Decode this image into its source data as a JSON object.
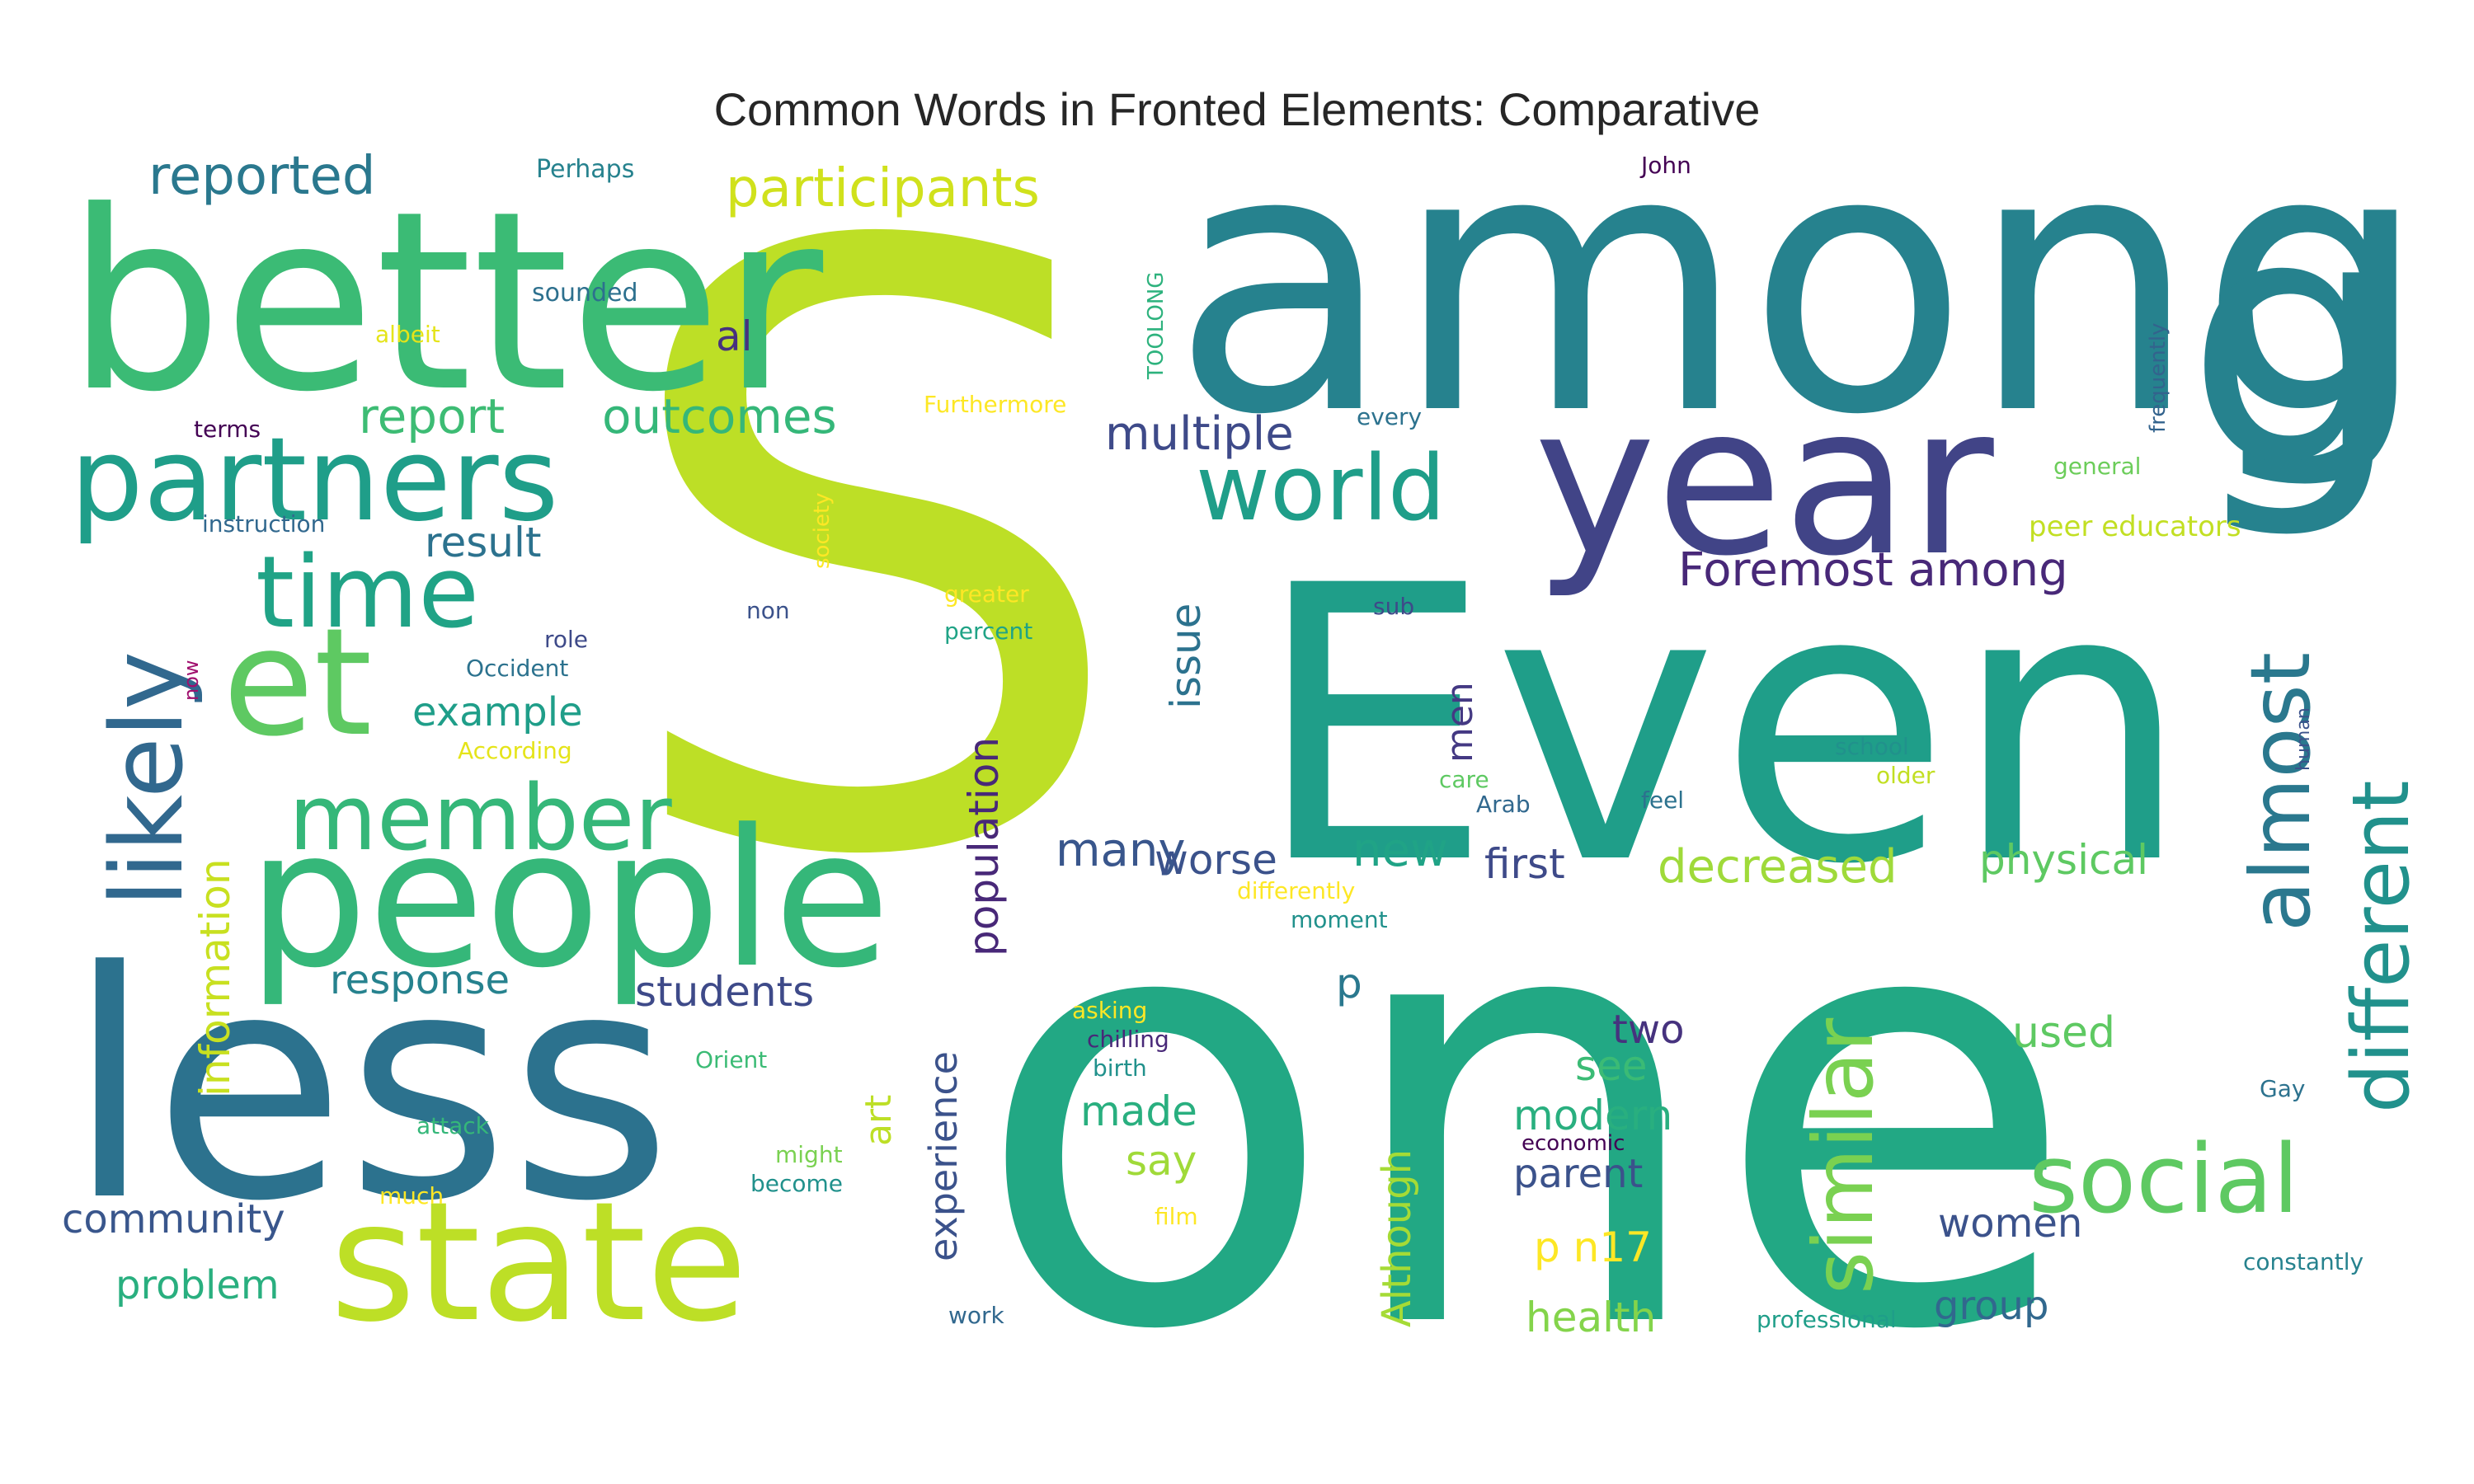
{
  "chart_data": {
    "type": "wordcloud",
    "title": "Common Words in Fronted Elements: Comparative",
    "words": [
      {
        "text": "among",
        "size": 440,
        "color": "#26828e"
      },
      {
        "text": "S",
        "size": 1000,
        "color": "#bddf26"
      },
      {
        "text": "one",
        "size": 720,
        "color": "#22a884"
      },
      {
        "text": "Even",
        "size": 460,
        "color": "#1f9e89"
      },
      {
        "text": "better",
        "size": 300,
        "color": "#3bbb75"
      },
      {
        "text": "less",
        "size": 380,
        "color": "#2c728e"
      },
      {
        "text": "year",
        "size": 250,
        "color": "#414487"
      },
      {
        "text": "g",
        "size": 420,
        "color": "#26828e"
      },
      {
        "text": "people",
        "size": 230,
        "color": "#35b779"
      },
      {
        "text": "state",
        "size": 200,
        "color": "#bddf26"
      },
      {
        "text": "et",
        "size": 180,
        "color": "#5ec962"
      },
      {
        "text": "partners",
        "size": 140,
        "color": "#1f9e89"
      },
      {
        "text": "time",
        "size": 120,
        "color": "#20a386"
      },
      {
        "text": "likely",
        "size": 120,
        "color": "#31688e"
      },
      {
        "text": "member",
        "size": 110,
        "color": "#35b779"
      },
      {
        "text": "world",
        "size": 110,
        "color": "#1f9e89"
      },
      {
        "text": "social",
        "size": 115,
        "color": "#5ec962"
      },
      {
        "text": "similar",
        "size": 100,
        "color": "#7ad151"
      },
      {
        "text": "almost",
        "size": 100,
        "color": "#2a788e"
      },
      {
        "text": "different",
        "size": 95,
        "color": "#21918c"
      },
      {
        "text": "reported",
        "size": 64,
        "color": "#2a788e"
      },
      {
        "text": "participants",
        "size": 64,
        "color": "#d0e11c"
      },
      {
        "text": "report",
        "size": 58,
        "color": "#3dbc74"
      },
      {
        "text": "outcomes",
        "size": 58,
        "color": "#35b779"
      },
      {
        "text": "multiple",
        "size": 56,
        "color": "#3e4a89"
      },
      {
        "text": "Foremost among",
        "size": 56,
        "color": "#482878"
      },
      {
        "text": "result",
        "size": 50,
        "color": "#2c728e"
      },
      {
        "text": "al",
        "size": 50,
        "color": "#46327e"
      },
      {
        "text": "example",
        "size": 48,
        "color": "#1f9e89"
      },
      {
        "text": "information",
        "size": 50,
        "color": "#c8e020"
      },
      {
        "text": "response",
        "size": 48,
        "color": "#26828e"
      },
      {
        "text": "students",
        "size": 50,
        "color": "#3e4a89"
      },
      {
        "text": "many",
        "size": 56,
        "color": "#39568c"
      },
      {
        "text": "worse",
        "size": 50,
        "color": "#3b528b"
      },
      {
        "text": "new",
        "size": 56,
        "color": "#20a386"
      },
      {
        "text": "first",
        "size": 50,
        "color": "#3e4a89"
      },
      {
        "text": "decreased",
        "size": 56,
        "color": "#9fda3a"
      },
      {
        "text": "physical",
        "size": 50,
        "color": "#5ec962"
      },
      {
        "text": "population",
        "size": 50,
        "color": "#482878"
      },
      {
        "text": "issue",
        "size": 50,
        "color": "#2c728e"
      },
      {
        "text": "men",
        "size": 44,
        "color": "#443983"
      },
      {
        "text": "experience",
        "size": 46,
        "color": "#3b528b"
      },
      {
        "text": "art",
        "size": 44,
        "color": "#bddf26"
      },
      {
        "text": "p",
        "size": 50,
        "color": "#2a788e"
      },
      {
        "text": "two",
        "size": 48,
        "color": "#46327e"
      },
      {
        "text": "see",
        "size": 50,
        "color": "#3bbb75"
      },
      {
        "text": "modern",
        "size": 50,
        "color": "#29af7f"
      },
      {
        "text": "parent",
        "size": 48,
        "color": "#3b528b"
      },
      {
        "text": "made",
        "size": 50,
        "color": "#29af7f"
      },
      {
        "text": "say",
        "size": 50,
        "color": "#a0da39"
      },
      {
        "text": "used",
        "size": 52,
        "color": "#5ec962"
      },
      {
        "text": "women",
        "size": 48,
        "color": "#3b528b"
      },
      {
        "text": "group",
        "size": 48,
        "color": "#31688e"
      },
      {
        "text": "community",
        "size": 48,
        "color": "#39568c"
      },
      {
        "text": "problem",
        "size": 48,
        "color": "#29af7f"
      },
      {
        "text": "Although",
        "size": 48,
        "color": "#a5db36"
      },
      {
        "text": "p n17",
        "size": 50,
        "color": "#fde725"
      },
      {
        "text": "health",
        "size": 50,
        "color": "#84d44b"
      },
      {
        "text": "peer educators",
        "size": 34,
        "color": "#c2df23"
      },
      {
        "text": "Perhaps",
        "size": 30,
        "color": "#26828e"
      },
      {
        "text": "sounded",
        "size": 30,
        "color": "#2d708e"
      },
      {
        "text": "albeit",
        "size": 28,
        "color": "#e5e419"
      },
      {
        "text": "TOOLONG",
        "size": 26,
        "color": "#2db27d"
      },
      {
        "text": "John",
        "size": 28,
        "color": "#440154"
      },
      {
        "text": "frequently",
        "size": 26,
        "color": "#33638d"
      },
      {
        "text": "terms",
        "size": 28,
        "color": "#440154"
      },
      {
        "text": "Furthermore",
        "size": 28,
        "color": "#fde725"
      },
      {
        "text": "every",
        "size": 28,
        "color": "#2c728e"
      },
      {
        "text": "general",
        "size": 28,
        "color": "#6ccd5a"
      },
      {
        "text": "instruction",
        "size": 28,
        "color": "#31688e"
      },
      {
        "text": "society",
        "size": 26,
        "color": "#fde725"
      },
      {
        "text": "non",
        "size": 28,
        "color": "#3b528b"
      },
      {
        "text": "greater",
        "size": 28,
        "color": "#fde725"
      },
      {
        "text": "sub",
        "size": 28,
        "color": "#3e4a89"
      },
      {
        "text": "role",
        "size": 28,
        "color": "#3e4a89"
      },
      {
        "text": "now",
        "size": 24,
        "color": "#a0106e"
      },
      {
        "text": "percent",
        "size": 28,
        "color": "#20a386"
      },
      {
        "text": "Occident",
        "size": 28,
        "color": "#2c728e"
      },
      {
        "text": "According",
        "size": 28,
        "color": "#e5e419"
      },
      {
        "text": "school",
        "size": 28,
        "color": "#21918c"
      },
      {
        "text": "older",
        "size": 28,
        "color": "#c2df23"
      },
      {
        "text": "human",
        "size": 22,
        "color": "#3b528b"
      },
      {
        "text": "care",
        "size": 28,
        "color": "#5ec962"
      },
      {
        "text": "Arab",
        "size": 28,
        "color": "#31688e"
      },
      {
        "text": "feel",
        "size": 28,
        "color": "#2c728e"
      },
      {
        "text": "differently",
        "size": 28,
        "color": "#fde725"
      },
      {
        "text": "moment",
        "size": 28,
        "color": "#21918c"
      },
      {
        "text": "asking",
        "size": 28,
        "color": "#fde725"
      },
      {
        "text": "chilling",
        "size": 28,
        "color": "#482878"
      },
      {
        "text": "birth",
        "size": 28,
        "color": "#21918c"
      },
      {
        "text": "Orient",
        "size": 28,
        "color": "#3bbb75"
      },
      {
        "text": "attack",
        "size": 28,
        "color": "#35b779"
      },
      {
        "text": "might",
        "size": 28,
        "color": "#7ad151"
      },
      {
        "text": "become",
        "size": 28,
        "color": "#21918c"
      },
      {
        "text": "economic",
        "size": 26,
        "color": "#440154"
      },
      {
        "text": "Gay",
        "size": 28,
        "color": "#2c728e"
      },
      {
        "text": "much",
        "size": 28,
        "color": "#fde725"
      },
      {
        "text": "film",
        "size": 28,
        "color": "#fde725"
      },
      {
        "text": "constantly",
        "size": 28,
        "color": "#26828e"
      },
      {
        "text": "work",
        "size": 28,
        "color": "#31688e"
      },
      {
        "text": "professional",
        "size": 28,
        "color": "#1f9e89"
      }
    ]
  }
}
